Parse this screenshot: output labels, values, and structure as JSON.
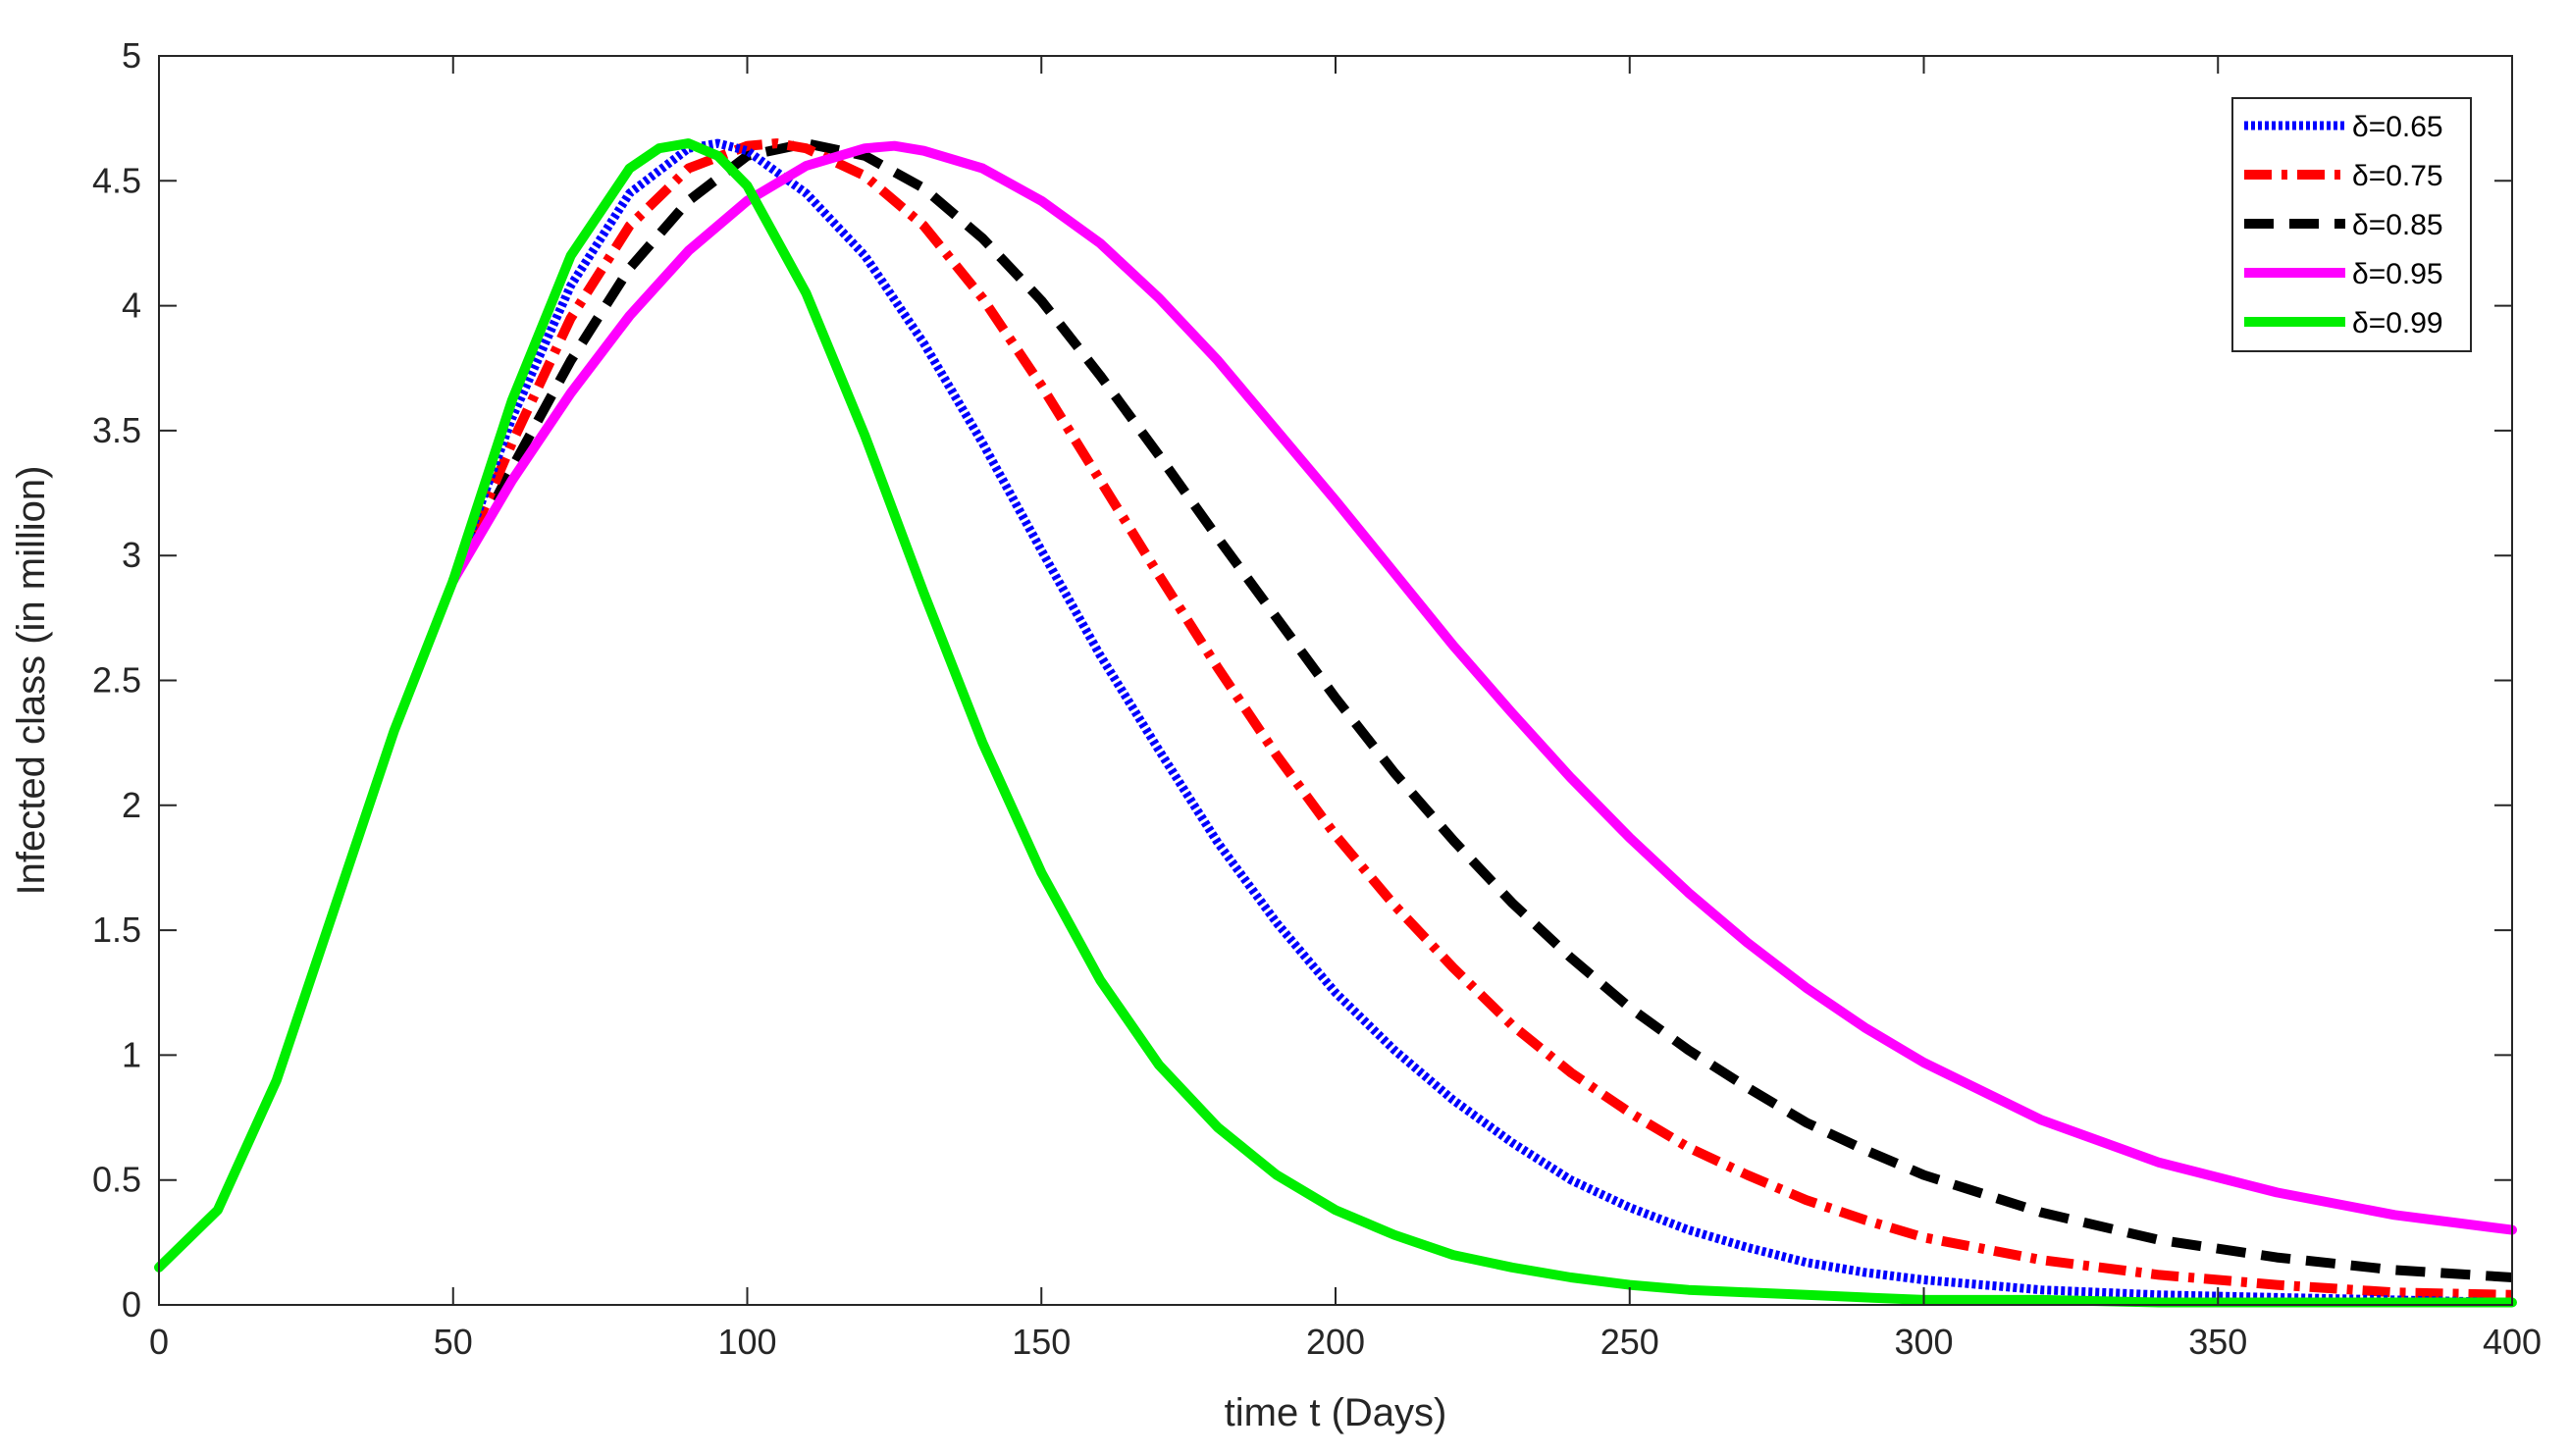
{
  "chart_data": {
    "type": "line",
    "title": "",
    "xlabel": "time t (Days)",
    "ylabel": "Infected class (in million)",
    "xlim": [
      0,
      400
    ],
    "ylim": [
      0,
      5
    ],
    "xticks": [
      0,
      50,
      100,
      150,
      200,
      250,
      300,
      350,
      400
    ],
    "yticks": [
      0,
      0.5,
      1,
      1.5,
      2,
      2.5,
      3,
      3.5,
      4,
      4.5,
      5
    ],
    "grid": false,
    "legend_position": "top-right",
    "shared_prefix": {
      "x": [
        0,
        10,
        20,
        30,
        40,
        50
      ],
      "y": [
        0.15,
        0.38,
        0.9,
        1.6,
        2.3,
        2.9
      ]
    },
    "series": [
      {
        "name": "δ=0.65",
        "color": "#0000ff",
        "style": "dotted",
        "x": [
          50,
          60,
          70,
          80,
          90,
          95,
          100,
          110,
          120,
          130,
          140,
          150,
          160,
          170,
          180,
          190,
          200,
          210,
          220,
          230,
          240,
          250,
          260,
          270,
          280,
          290,
          300,
          320,
          340,
          360,
          380,
          400
        ],
        "y": [
          2.9,
          3.55,
          4.08,
          4.45,
          4.63,
          4.65,
          4.62,
          4.45,
          4.2,
          3.85,
          3.45,
          3.02,
          2.6,
          2.22,
          1.85,
          1.53,
          1.25,
          1.02,
          0.82,
          0.65,
          0.5,
          0.39,
          0.3,
          0.23,
          0.17,
          0.13,
          0.1,
          0.06,
          0.04,
          0.03,
          0.02,
          0.01
        ]
      },
      {
        "name": "δ=0.75",
        "color": "#ff0000",
        "style": "dashdot",
        "x": [
          50,
          60,
          70,
          80,
          90,
          100,
          105,
          110,
          120,
          130,
          140,
          150,
          160,
          170,
          180,
          190,
          200,
          210,
          220,
          230,
          240,
          250,
          260,
          270,
          280,
          290,
          300,
          320,
          340,
          360,
          380,
          400
        ],
        "y": [
          2.9,
          3.45,
          3.95,
          4.32,
          4.55,
          4.64,
          4.65,
          4.63,
          4.52,
          4.32,
          4.03,
          3.68,
          3.3,
          2.92,
          2.55,
          2.2,
          1.88,
          1.6,
          1.35,
          1.12,
          0.93,
          0.77,
          0.63,
          0.52,
          0.42,
          0.34,
          0.27,
          0.18,
          0.12,
          0.08,
          0.05,
          0.04
        ]
      },
      {
        "name": "δ=0.85",
        "color": "#000000",
        "style": "dashed",
        "x": [
          50,
          60,
          70,
          80,
          90,
          100,
          110,
          120,
          130,
          140,
          150,
          160,
          170,
          180,
          190,
          200,
          210,
          220,
          230,
          240,
          250,
          260,
          270,
          280,
          290,
          300,
          320,
          340,
          360,
          380,
          400
        ],
        "y": [
          2.9,
          3.35,
          3.78,
          4.15,
          4.42,
          4.6,
          4.65,
          4.6,
          4.47,
          4.27,
          4.02,
          3.72,
          3.4,
          3.07,
          2.75,
          2.43,
          2.13,
          1.86,
          1.61,
          1.39,
          1.19,
          1.02,
          0.87,
          0.73,
          0.62,
          0.52,
          0.37,
          0.26,
          0.19,
          0.14,
          0.11
        ]
      },
      {
        "name": "δ=0.95",
        "color": "#ff00ff",
        "style": "solid",
        "x": [
          50,
          60,
          70,
          80,
          90,
          100,
          110,
          120,
          125,
          130,
          140,
          150,
          160,
          170,
          180,
          190,
          200,
          210,
          220,
          230,
          240,
          250,
          260,
          270,
          280,
          290,
          300,
          320,
          340,
          360,
          380,
          400
        ],
        "y": [
          2.9,
          3.3,
          3.65,
          3.96,
          4.22,
          4.42,
          4.56,
          4.63,
          4.64,
          4.62,
          4.55,
          4.42,
          4.25,
          4.03,
          3.78,
          3.5,
          3.22,
          2.93,
          2.64,
          2.37,
          2.11,
          1.87,
          1.65,
          1.45,
          1.27,
          1.11,
          0.97,
          0.74,
          0.57,
          0.45,
          0.36,
          0.3
        ]
      },
      {
        "name": "δ=0.99",
        "color": "#00ee00",
        "style": "solid",
        "x": [
          50,
          60,
          70,
          80,
          85,
          90,
          95,
          100,
          110,
          120,
          130,
          140,
          150,
          160,
          170,
          180,
          190,
          200,
          210,
          220,
          230,
          240,
          250,
          260,
          270,
          280,
          290,
          300,
          320,
          340,
          360,
          380,
          400
        ],
        "y": [
          2.9,
          3.62,
          4.2,
          4.55,
          4.63,
          4.65,
          4.6,
          4.48,
          4.05,
          3.48,
          2.85,
          2.25,
          1.73,
          1.3,
          0.96,
          0.71,
          0.52,
          0.38,
          0.28,
          0.2,
          0.15,
          0.11,
          0.08,
          0.06,
          0.05,
          0.04,
          0.03,
          0.02,
          0.02,
          0.01,
          0.01,
          0.01,
          0.01
        ]
      }
    ]
  }
}
